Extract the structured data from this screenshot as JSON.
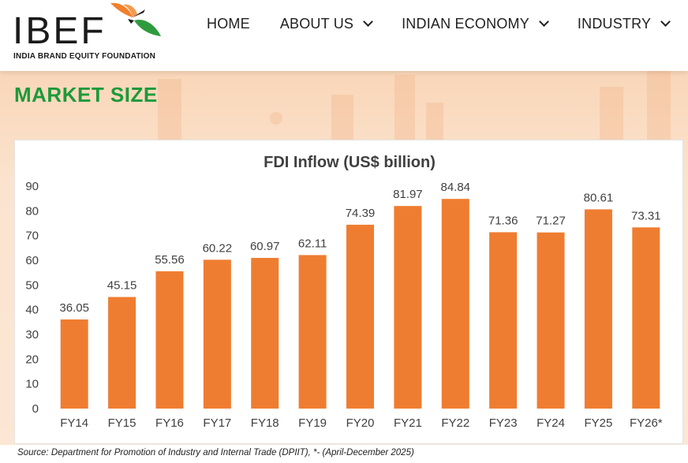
{
  "logo": {
    "wordmark": "IBEF",
    "tagline": "INDIA BRAND EQUITY FOUNDATION"
  },
  "nav": {
    "items": [
      {
        "label": "HOME",
        "dropdown": false
      },
      {
        "label": "ABOUT US",
        "dropdown": true
      },
      {
        "label": "INDIAN ECONOMY",
        "dropdown": true
      },
      {
        "label": "INDUSTRY",
        "dropdown": true
      }
    ]
  },
  "section": {
    "title": "MARKET SIZE"
  },
  "colors": {
    "bar": "#ef7d31",
    "title_green": "#1c9a3a",
    "accent_orange": "#f37f2b"
  },
  "chart_data": {
    "type": "bar",
    "title": "FDI Inflow (US$ billion)",
    "categories": [
      "FY14",
      "FY15",
      "FY16",
      "FY17",
      "FY18",
      "FY19",
      "FY20",
      "FY21",
      "FY22",
      "FY23",
      "FY24",
      "FY25",
      "FY26*"
    ],
    "values": [
      36.05,
      45.15,
      55.56,
      60.22,
      60.97,
      62.11,
      74.39,
      81.97,
      84.84,
      71.36,
      71.27,
      80.61,
      73.31
    ],
    "value_labels": [
      "36.05",
      "45.15",
      "55.56",
      "60.22",
      "60.97",
      "62.11",
      "74.39",
      "81.97",
      "84.84",
      "71.36",
      "71.27",
      "80.61",
      "73.31"
    ],
    "yticks": [
      "0",
      "10",
      "20",
      "30",
      "40",
      "50",
      "60",
      "70",
      "80",
      "90"
    ],
    "ylim": [
      0,
      90
    ],
    "grid": false,
    "legend": "none"
  },
  "source": {
    "text": "Source: Department for Promotion of Industry and Internal Trade (DPIIT), *- (April-December 2025)"
  }
}
